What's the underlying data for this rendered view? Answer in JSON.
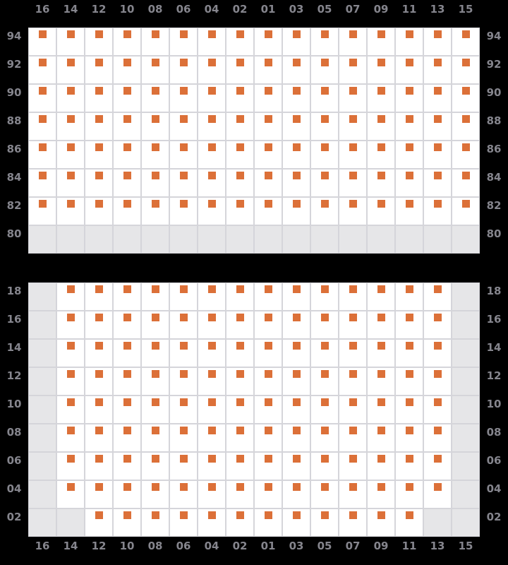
{
  "colors": {
    "background": "#000000",
    "cell": "#ffffff",
    "blocked_cell": "#e6e6e8",
    "gridline": "#d5d5da",
    "marker": "#dc7038",
    "label": "#85858d"
  },
  "columns": [
    "16",
    "14",
    "12",
    "10",
    "08",
    "06",
    "04",
    "02",
    "01",
    "03",
    "05",
    "07",
    "09",
    "11",
    "13",
    "15"
  ],
  "top_panel": {
    "rows": [
      {
        "label": "94",
        "cells": [
          1,
          1,
          1,
          1,
          1,
          1,
          1,
          1,
          1,
          1,
          1,
          1,
          1,
          1,
          1,
          1
        ]
      },
      {
        "label": "92",
        "cells": [
          1,
          1,
          1,
          1,
          1,
          1,
          1,
          1,
          1,
          1,
          1,
          1,
          1,
          1,
          1,
          1
        ]
      },
      {
        "label": "90",
        "cells": [
          1,
          1,
          1,
          1,
          1,
          1,
          1,
          1,
          1,
          1,
          1,
          1,
          1,
          1,
          1,
          1
        ]
      },
      {
        "label": "88",
        "cells": [
          1,
          1,
          1,
          1,
          1,
          1,
          1,
          1,
          1,
          1,
          1,
          1,
          1,
          1,
          1,
          1
        ]
      },
      {
        "label": "86",
        "cells": [
          1,
          1,
          1,
          1,
          1,
          1,
          1,
          1,
          1,
          1,
          1,
          1,
          1,
          1,
          1,
          1
        ]
      },
      {
        "label": "84",
        "cells": [
          1,
          1,
          1,
          1,
          1,
          1,
          1,
          1,
          1,
          1,
          1,
          1,
          1,
          1,
          1,
          1
        ]
      },
      {
        "label": "82",
        "cells": [
          1,
          1,
          1,
          1,
          1,
          1,
          1,
          1,
          1,
          1,
          1,
          1,
          1,
          1,
          1,
          1
        ]
      },
      {
        "label": "80",
        "cells": [
          0,
          0,
          0,
          0,
          0,
          0,
          0,
          0,
          0,
          0,
          0,
          0,
          0,
          0,
          0,
          0
        ]
      }
    ]
  },
  "bottom_panel": {
    "rows": [
      {
        "label": "18",
        "cells": [
          0,
          1,
          1,
          1,
          1,
          1,
          1,
          1,
          1,
          1,
          1,
          1,
          1,
          1,
          1,
          0
        ]
      },
      {
        "label": "16",
        "cells": [
          0,
          1,
          1,
          1,
          1,
          1,
          1,
          1,
          1,
          1,
          1,
          1,
          1,
          1,
          1,
          0
        ]
      },
      {
        "label": "14",
        "cells": [
          0,
          1,
          1,
          1,
          1,
          1,
          1,
          1,
          1,
          1,
          1,
          1,
          1,
          1,
          1,
          0
        ]
      },
      {
        "label": "12",
        "cells": [
          0,
          1,
          1,
          1,
          1,
          1,
          1,
          1,
          1,
          1,
          1,
          1,
          1,
          1,
          1,
          0
        ]
      },
      {
        "label": "10",
        "cells": [
          0,
          1,
          1,
          1,
          1,
          1,
          1,
          1,
          1,
          1,
          1,
          1,
          1,
          1,
          1,
          0
        ]
      },
      {
        "label": "08",
        "cells": [
          0,
          1,
          1,
          1,
          1,
          1,
          1,
          1,
          1,
          1,
          1,
          1,
          1,
          1,
          1,
          0
        ]
      },
      {
        "label": "06",
        "cells": [
          0,
          1,
          1,
          1,
          1,
          1,
          1,
          1,
          1,
          1,
          1,
          1,
          1,
          1,
          1,
          0
        ]
      },
      {
        "label": "04",
        "cells": [
          0,
          1,
          1,
          1,
          1,
          1,
          1,
          1,
          1,
          1,
          1,
          1,
          1,
          1,
          1,
          0
        ]
      },
      {
        "label": "02",
        "cells": [
          0,
          0,
          1,
          1,
          1,
          1,
          1,
          1,
          1,
          1,
          1,
          1,
          1,
          1,
          0,
          0
        ]
      }
    ]
  }
}
